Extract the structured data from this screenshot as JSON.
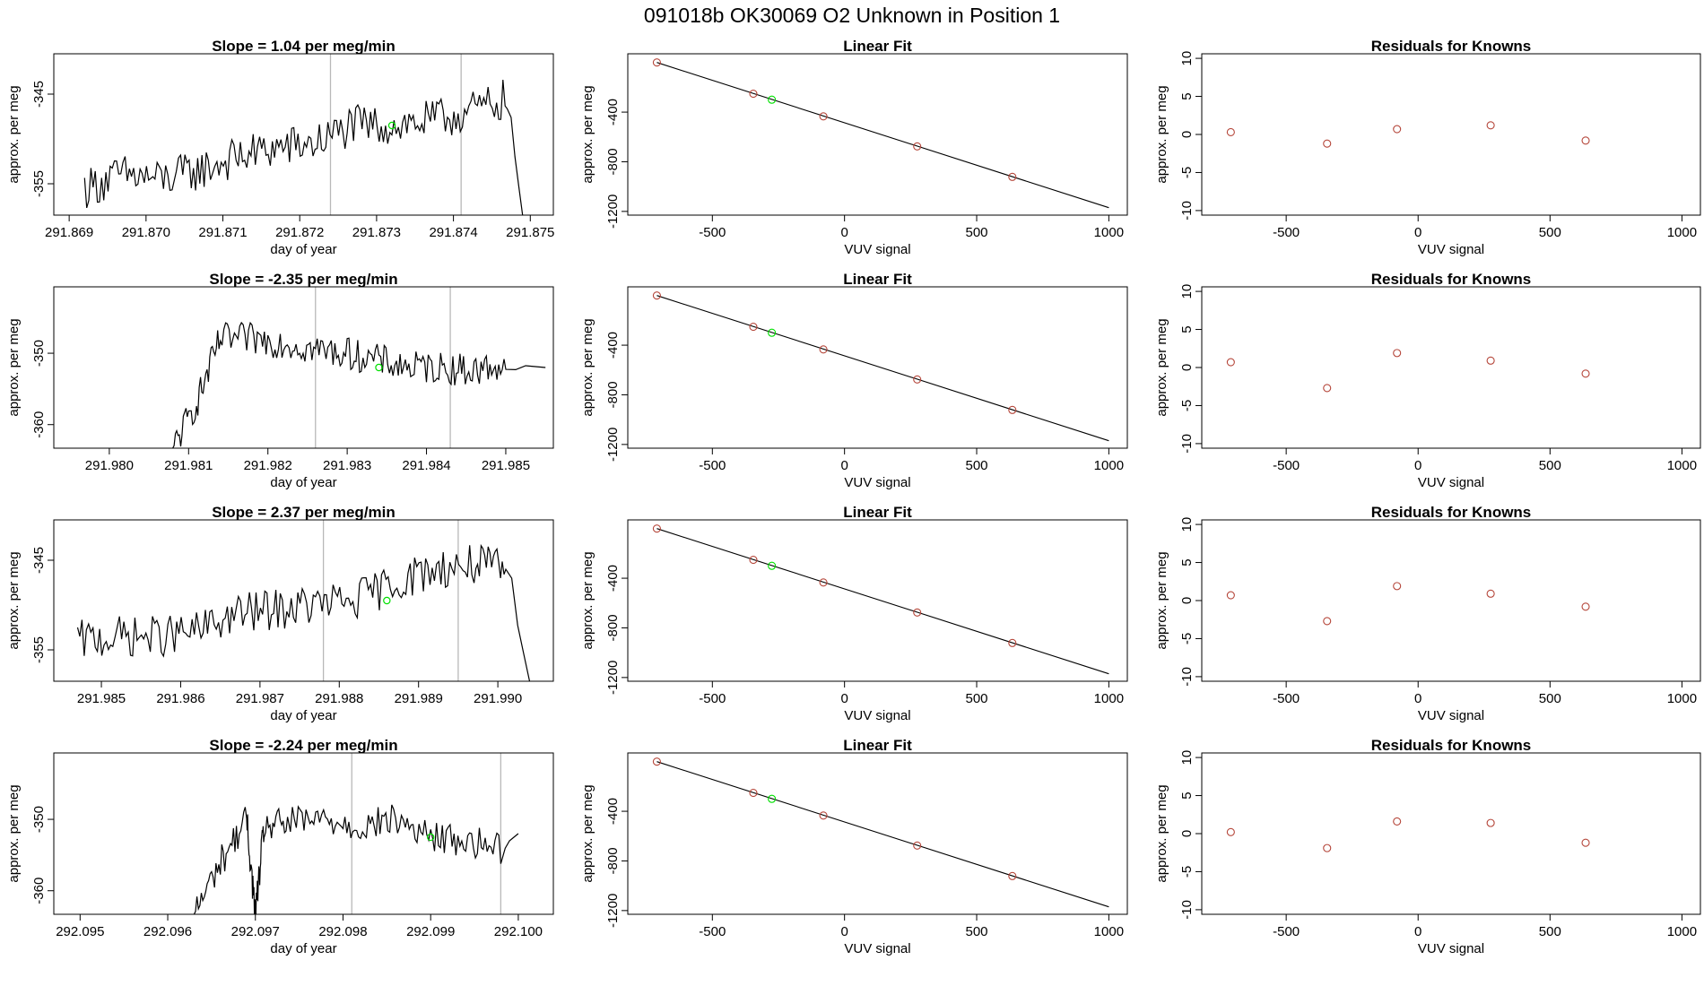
{
  "page_title": "091018b      OK30069    O2 Unknown in Position  1",
  "colors": {
    "line": "#000000",
    "known_point": "#b5463a",
    "unknown_point": "#00e000",
    "vline": "#b8b8b8"
  },
  "chart_data": [
    {
      "type": "line",
      "panel": "timeseries",
      "row": 1,
      "title": "Slope =  1.04  per meg/min",
      "xlabel": "day of year",
      "ylabel": "approx. per meg",
      "xlim": [
        291.8688,
        291.8753
      ],
      "ylim": [
        -358.5,
        -340.5
      ],
      "xticks": [
        291.869,
        291.87,
        291.871,
        291.872,
        291.873,
        291.874,
        291.875
      ],
      "xtick_labels": [
        "291.869",
        "291.870",
        "291.871",
        "291.872",
        "291.873",
        "291.874",
        "291.875"
      ],
      "yticks": [
        -345,
        -355
      ],
      "ytick_labels": [
        "-345",
        "-355"
      ],
      "vlines": [
        291.8724,
        291.8741
      ],
      "series": [
        {
          "x": [
            291.8692,
            291.8697,
            291.8702,
            291.8707,
            291.8712,
            291.8717,
            291.8722,
            291.8727,
            291.8732,
            291.8737,
            291.8742,
            291.8747,
            291.8749
          ],
          "y": [
            -355.5,
            -354,
            -354.5,
            -353.5,
            -352,
            -351,
            -350.5,
            -348.5,
            -348.5,
            -348,
            -347,
            -345.5,
            -358.5
          ]
        }
      ],
      "unknown_marker": {
        "x": 291.8732,
        "y": -348.5
      }
    },
    {
      "type": "scatter",
      "panel": "linear_fit",
      "row": 1,
      "title": "Linear Fit",
      "xlabel": "VUV signal",
      "ylabel": "approx. per meg",
      "xlim": [
        -820,
        1070
      ],
      "ylim": [
        -1230,
        70
      ],
      "xticks": [
        -500,
        0,
        500,
        1000
      ],
      "xtick_labels": [
        "-500",
        "0",
        "500",
        "1000"
      ],
      "yticks": [
        -400,
        -800,
        -1200
      ],
      "ytick_labels": [
        "-400",
        "-800",
        "-1200"
      ],
      "fit_line": {
        "x": [
          -710,
          1000
        ],
        "y": [
          0,
          -1170
        ]
      },
      "known_points": {
        "x": [
          -710,
          -345,
          -80,
          275,
          635
        ],
        "y": [
          0,
          -252,
          -434,
          -676,
          -922
        ]
      },
      "unknown_point": {
        "x": -275,
        "y": -300
      }
    },
    {
      "type": "scatter",
      "panel": "residuals",
      "row": 1,
      "title": "Residuals for Knowns",
      "xlabel": "VUV signal",
      "ylabel": "approx. per meg",
      "xlim": [
        -820,
        1070
      ],
      "ylim": [
        -10.6,
        10.6
      ],
      "xticks": [
        -500,
        0,
        500,
        1000
      ],
      "xtick_labels": [
        "-500",
        "0",
        "500",
        "1000"
      ],
      "yticks": [
        10,
        5,
        0,
        -5,
        -10
      ],
      "ytick_labels": [
        "10",
        "5",
        "0",
        "-5",
        "-10"
      ],
      "points": {
        "x": [
          -710,
          -345,
          -80,
          275,
          635
        ],
        "y": [
          0.3,
          -1.2,
          0.7,
          1.2,
          -0.8
        ]
      }
    },
    {
      "type": "line",
      "panel": "timeseries",
      "row": 2,
      "title": "Slope =  -2.35  per meg/min",
      "xlabel": "day of year",
      "ylabel": "approx. per meg",
      "xlim": [
        291.9793,
        291.9856
      ],
      "ylim": [
        -363.3,
        -340.7
      ],
      "xticks": [
        291.98,
        291.981,
        291.982,
        291.983,
        291.984,
        291.985
      ],
      "xtick_labels": [
        "291.980",
        "291.981",
        "291.982",
        "291.983",
        "291.984",
        "291.985"
      ],
      "vlines": [
        291.9826,
        291.9843
      ],
      "yticks": [
        -350,
        -360
      ],
      "ytick_labels": [
        "-350",
        "-360"
      ],
      "series": [
        {
          "x": [
            291.9808,
            291.9811,
            291.9814,
            291.9818,
            291.9822,
            291.9826,
            291.983,
            291.9834,
            291.9838,
            291.9842,
            291.9846,
            291.985,
            291.9855
          ],
          "y": [
            -363.3,
            -357,
            -348,
            -348,
            -348.5,
            -349.5,
            -350,
            -351,
            -352,
            -352,
            -352.5,
            -351.5,
            -352
          ]
        }
      ],
      "unknown_marker": {
        "x": 291.9834,
        "y": -352
      }
    },
    {
      "type": "scatter",
      "panel": "linear_fit",
      "row": 2,
      "title": "Linear Fit",
      "xlabel": "VUV signal",
      "ylabel": "approx. per meg",
      "xlim": [
        -820,
        1070
      ],
      "ylim": [
        -1230,
        70
      ],
      "xticks": [
        -500,
        0,
        500,
        1000
      ],
      "xtick_labels": [
        "-500",
        "0",
        "500",
        "1000"
      ],
      "yticks": [
        -400,
        -800,
        -1200
      ],
      "ytick_labels": [
        "-400",
        "-800",
        "-1200"
      ],
      "fit_line": {
        "x": [
          -710,
          1000
        ],
        "y": [
          0,
          -1170
        ]
      },
      "known_points": {
        "x": [
          -710,
          -345,
          -80,
          275,
          635
        ],
        "y": [
          0,
          -252,
          -434,
          -676,
          -922
        ]
      },
      "unknown_point": {
        "x": -275,
        "y": -300
      }
    },
    {
      "type": "scatter",
      "panel": "residuals",
      "row": 2,
      "title": "Residuals for Knowns",
      "xlabel": "VUV signal",
      "ylabel": "approx. per meg",
      "xlim": [
        -820,
        1070
      ],
      "ylim": [
        -10.6,
        10.6
      ],
      "xticks": [
        -500,
        0,
        500,
        1000
      ],
      "xtick_labels": [
        "-500",
        "0",
        "500",
        "1000"
      ],
      "yticks": [
        10,
        5,
        0,
        -5,
        -10
      ],
      "ytick_labels": [
        "10",
        "5",
        "0",
        "-5",
        "-10"
      ],
      "points": {
        "x": [
          -710,
          -345,
          -80,
          275,
          635
        ],
        "y": [
          0.7,
          -2.7,
          1.9,
          0.9,
          -0.8
        ]
      }
    },
    {
      "type": "line",
      "panel": "timeseries",
      "row": 3,
      "title": "Slope =  2.37  per meg/min",
      "xlabel": "day of year",
      "ylabel": "approx. per meg",
      "xlim": [
        291.9844,
        291.9907
      ],
      "ylim": [
        -358.5,
        -340.5
      ],
      "xticks": [
        291.985,
        291.986,
        291.987,
        291.988,
        291.989,
        291.99
      ],
      "xtick_labels": [
        "291.985",
        "291.986",
        "291.987",
        "291.988",
        "291.989",
        "291.990"
      ],
      "vlines": [
        291.9878,
        291.9895
      ],
      "yticks": [
        -345,
        -355
      ],
      "ytick_labels": [
        "-345",
        "-355"
      ],
      "series": [
        {
          "x": [
            291.9847,
            291.9852,
            291.9857,
            291.9862,
            291.9867,
            291.9872,
            291.9877,
            291.9882,
            291.9887,
            291.9892,
            291.9897,
            291.9901,
            291.9904
          ],
          "y": [
            -354,
            -353.5,
            -353.5,
            -353,
            -351,
            -350.5,
            -350,
            -349.5,
            -347.5,
            -346,
            -345.5,
            -346,
            -358.5
          ]
        }
      ],
      "unknown_marker": {
        "x": 291.9886,
        "y": -349.5
      }
    },
    {
      "type": "scatter",
      "panel": "linear_fit",
      "row": 3,
      "title": "Linear Fit",
      "xlabel": "VUV signal",
      "ylabel": "approx. per meg",
      "xlim": [
        -820,
        1070
      ],
      "ylim": [
        -1230,
        70
      ],
      "xticks": [
        -500,
        0,
        500,
        1000
      ],
      "xtick_labels": [
        "-500",
        "0",
        "500",
        "1000"
      ],
      "yticks": [
        -400,
        -800,
        -1200
      ],
      "ytick_labels": [
        "-400",
        "-800",
        "-1200"
      ],
      "fit_line": {
        "x": [
          -710,
          1000
        ],
        "y": [
          0,
          -1170
        ]
      },
      "known_points": {
        "x": [
          -710,
          -345,
          -80,
          275,
          635
        ],
        "y": [
          0,
          -252,
          -434,
          -676,
          -922
        ]
      },
      "unknown_point": {
        "x": -275,
        "y": -300
      }
    },
    {
      "type": "scatter",
      "panel": "residuals",
      "row": 3,
      "title": "Residuals for Knowns",
      "xlabel": "VUV signal",
      "ylabel": "approx. per meg",
      "xlim": [
        -820,
        1070
      ],
      "ylim": [
        -10.6,
        10.6
      ],
      "xticks": [
        -500,
        0,
        500,
        1000
      ],
      "xtick_labels": [
        "-500",
        "0",
        "500",
        "1000"
      ],
      "yticks": [
        10,
        5,
        0,
        -5,
        -10
      ],
      "ytick_labels": [
        "10",
        "5",
        "0",
        "-5",
        "-10"
      ],
      "points": {
        "x": [
          -710,
          -345,
          -80,
          275,
          635
        ],
        "y": [
          0.7,
          -2.7,
          1.9,
          0.9,
          -0.8
        ]
      }
    },
    {
      "type": "line",
      "panel": "timeseries",
      "row": 4,
      "title": "Slope =  -2.24  per meg/min",
      "xlabel": "day of year",
      "ylabel": "approx. per meg",
      "xlim": [
        292.0947,
        292.1004
      ],
      "ylim": [
        -363.3,
        -340.7
      ],
      "xticks": [
        292.095,
        292.096,
        292.097,
        292.098,
        292.099,
        292.1
      ],
      "xtick_labels": [
        "292.095",
        "292.096",
        "292.097",
        "292.098",
        "292.099",
        "292.100"
      ],
      "vlines": [
        292.0981,
        292.0998
      ],
      "yticks": [
        -350,
        -360
      ],
      "ytick_labels": [
        "-350",
        "-360"
      ],
      "series": [
        {
          "x": [
            292.0963,
            292.0966,
            292.0969,
            292.097,
            292.0971,
            292.0974,
            292.0978,
            292.0982,
            292.0986,
            292.099,
            292.0994,
            292.0998,
            292.1
          ],
          "y": [
            -363.3,
            -356,
            -350,
            -363.3,
            -351,
            -350.5,
            -350,
            -351,
            -350,
            -352.5,
            -353,
            -354,
            -352
          ]
        }
      ],
      "unknown_marker": {
        "x": 292.099,
        "y": -352.5
      }
    },
    {
      "type": "scatter",
      "panel": "linear_fit",
      "row": 4,
      "title": "Linear Fit",
      "xlabel": "VUV signal",
      "ylabel": "approx. per meg",
      "xlim": [
        -820,
        1070
      ],
      "ylim": [
        -1230,
        70
      ],
      "xticks": [
        -500,
        0,
        500,
        1000
      ],
      "xtick_labels": [
        "-500",
        "0",
        "500",
        "1000"
      ],
      "yticks": [
        -400,
        -800,
        -1200
      ],
      "ytick_labels": [
        "-400",
        "-800",
        "-1200"
      ],
      "fit_line": {
        "x": [
          -710,
          1000
        ],
        "y": [
          0,
          -1170
        ]
      },
      "known_points": {
        "x": [
          -710,
          -345,
          -80,
          275,
          635
        ],
        "y": [
          0,
          -252,
          -434,
          -676,
          -922
        ]
      },
      "unknown_point": {
        "x": -275,
        "y": -300
      }
    },
    {
      "type": "scatter",
      "panel": "residuals",
      "row": 4,
      "title": "Residuals for Knowns",
      "xlabel": "VUV signal",
      "ylabel": "approx. per meg",
      "xlim": [
        -820,
        1070
      ],
      "ylim": [
        -10.6,
        10.6
      ],
      "xticks": [
        -500,
        0,
        500,
        1000
      ],
      "xtick_labels": [
        "-500",
        "0",
        "500",
        "1000"
      ],
      "yticks": [
        10,
        5,
        0,
        -5,
        -10
      ],
      "ytick_labels": [
        "10",
        "5",
        "0",
        "-5",
        "-10"
      ],
      "points": {
        "x": [
          -710,
          -345,
          -80,
          275,
          635
        ],
        "y": [
          0.2,
          -1.9,
          1.6,
          1.4,
          -1.2
        ]
      }
    }
  ]
}
